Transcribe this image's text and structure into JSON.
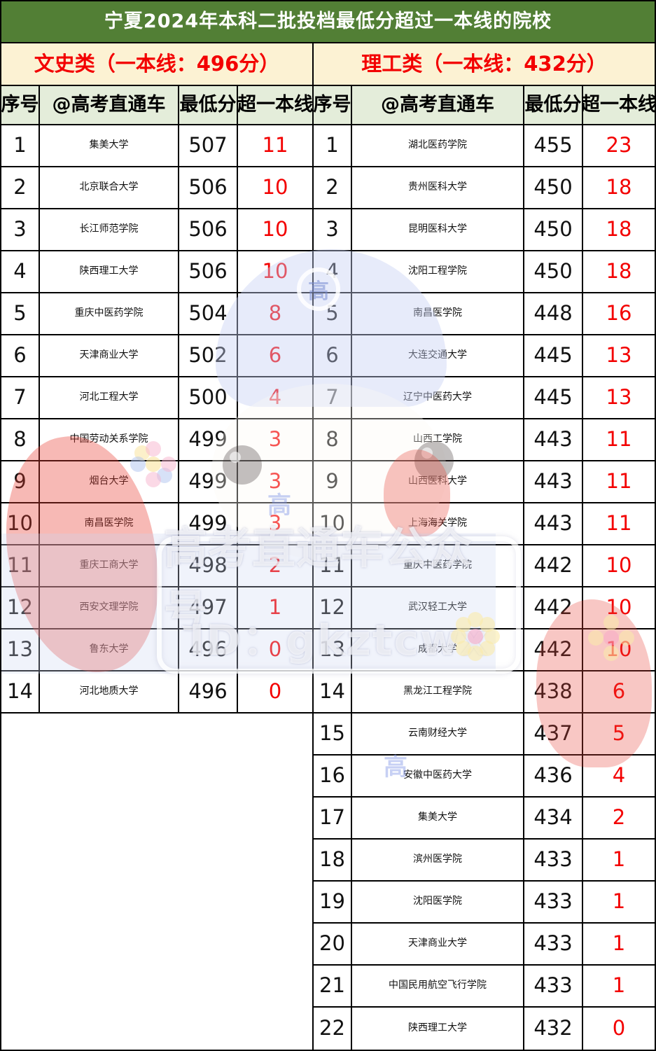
{
  "title": "宁夏2024年本科二批投档最低分超过一本线的院校",
  "sections": {
    "left": {
      "label": "文史类（一本线：496分）"
    },
    "right": {
      "label": "理工类（一本线：432分）"
    }
  },
  "headers": {
    "no": "序号",
    "school": "@高考直通车",
    "min_score": "最低分",
    "over_line": "超一本线"
  },
  "left_rows": [
    {
      "no": "1",
      "school": "集美大学",
      "score": "507",
      "over": "11"
    },
    {
      "no": "2",
      "school": "北京联合大学",
      "score": "506",
      "over": "10"
    },
    {
      "no": "3",
      "school": "长江师范学院",
      "score": "506",
      "over": "10"
    },
    {
      "no": "4",
      "school": "陕西理工大学",
      "score": "506",
      "over": "10"
    },
    {
      "no": "5",
      "school": "重庆中医药学院",
      "score": "504",
      "over": "8"
    },
    {
      "no": "6",
      "school": "天津商业大学",
      "score": "502",
      "over": "6"
    },
    {
      "no": "7",
      "school": "河北工程大学",
      "score": "500",
      "over": "4"
    },
    {
      "no": "8",
      "school": "中国劳动关系学院",
      "score": "499",
      "over": "3"
    },
    {
      "no": "9",
      "school": "烟台大学",
      "score": "499",
      "over": "3"
    },
    {
      "no": "10",
      "school": "南昌医学院",
      "score": "499",
      "over": "3"
    },
    {
      "no": "11",
      "school": "重庆工商大学",
      "score": "498",
      "over": "2"
    },
    {
      "no": "12",
      "school": "西安文理学院",
      "score": "497",
      "over": "1"
    },
    {
      "no": "13",
      "school": "鲁东大学",
      "score": "496",
      "over": "0"
    },
    {
      "no": "14",
      "school": "河北地质大学",
      "score": "496",
      "over": "0"
    }
  ],
  "right_rows": [
    {
      "no": "1",
      "school": "湖北医药学院",
      "score": "455",
      "over": "23"
    },
    {
      "no": "2",
      "school": "贵州医科大学",
      "score": "450",
      "over": "18"
    },
    {
      "no": "3",
      "school": "昆明医科大学",
      "score": "450",
      "over": "18"
    },
    {
      "no": "4",
      "school": "沈阳工程学院",
      "score": "450",
      "over": "18"
    },
    {
      "no": "5",
      "school": "南昌医学院",
      "score": "448",
      "over": "16"
    },
    {
      "no": "6",
      "school": "大连交通大学",
      "score": "445",
      "over": "13"
    },
    {
      "no": "7",
      "school": "辽宁中医药大学",
      "score": "445",
      "over": "13"
    },
    {
      "no": "8",
      "school": "山西工学院",
      "score": "443",
      "over": "11"
    },
    {
      "no": "9",
      "school": "山西医科大学",
      "score": "443",
      "over": "11"
    },
    {
      "no": "10",
      "school": "上海海关学院",
      "score": "443",
      "over": "11"
    },
    {
      "no": "11",
      "school": "重庆中医药学院",
      "score": "442",
      "over": "10"
    },
    {
      "no": "12",
      "school": "武汉轻工大学",
      "score": "442",
      "over": "10"
    },
    {
      "no": "13",
      "school": "成都大学",
      "score": "442",
      "over": "10"
    },
    {
      "no": "14",
      "school": "黑龙江工程学院",
      "score": "438",
      "over": "6"
    },
    {
      "no": "15",
      "school": "云南财经大学",
      "score": "437",
      "over": "5"
    },
    {
      "no": "16",
      "school": "安徽中医药大学",
      "score": "436",
      "over": "4"
    },
    {
      "no": "17",
      "school": "集美大学",
      "score": "434",
      "over": "2"
    },
    {
      "no": "18",
      "school": "滨州医学院",
      "score": "433",
      "over": "1"
    },
    {
      "no": "19",
      "school": "沈阳医学院",
      "score": "433",
      "over": "1"
    },
    {
      "no": "20",
      "school": "天津商业大学",
      "score": "433",
      "over": "1"
    },
    {
      "no": "21",
      "school": "中国民用航空飞行学院",
      "score": "433",
      "over": "1"
    },
    {
      "no": "22",
      "school": "陕西理工大学",
      "score": "432",
      "over": "0"
    }
  ],
  "watermark": {
    "brand_text": "高考直通车公众号",
    "id_text": "ID：gkztcwx",
    "cap_char": "高"
  },
  "colors": {
    "title_bg": "#527f35",
    "title_text": "#ffffff",
    "category_bg": "#fcf2d3",
    "category_text": "#f30000",
    "header_bg": "#e4edda",
    "over_line_text": "#f30000",
    "body_text": "#111111",
    "border": "#000000"
  }
}
